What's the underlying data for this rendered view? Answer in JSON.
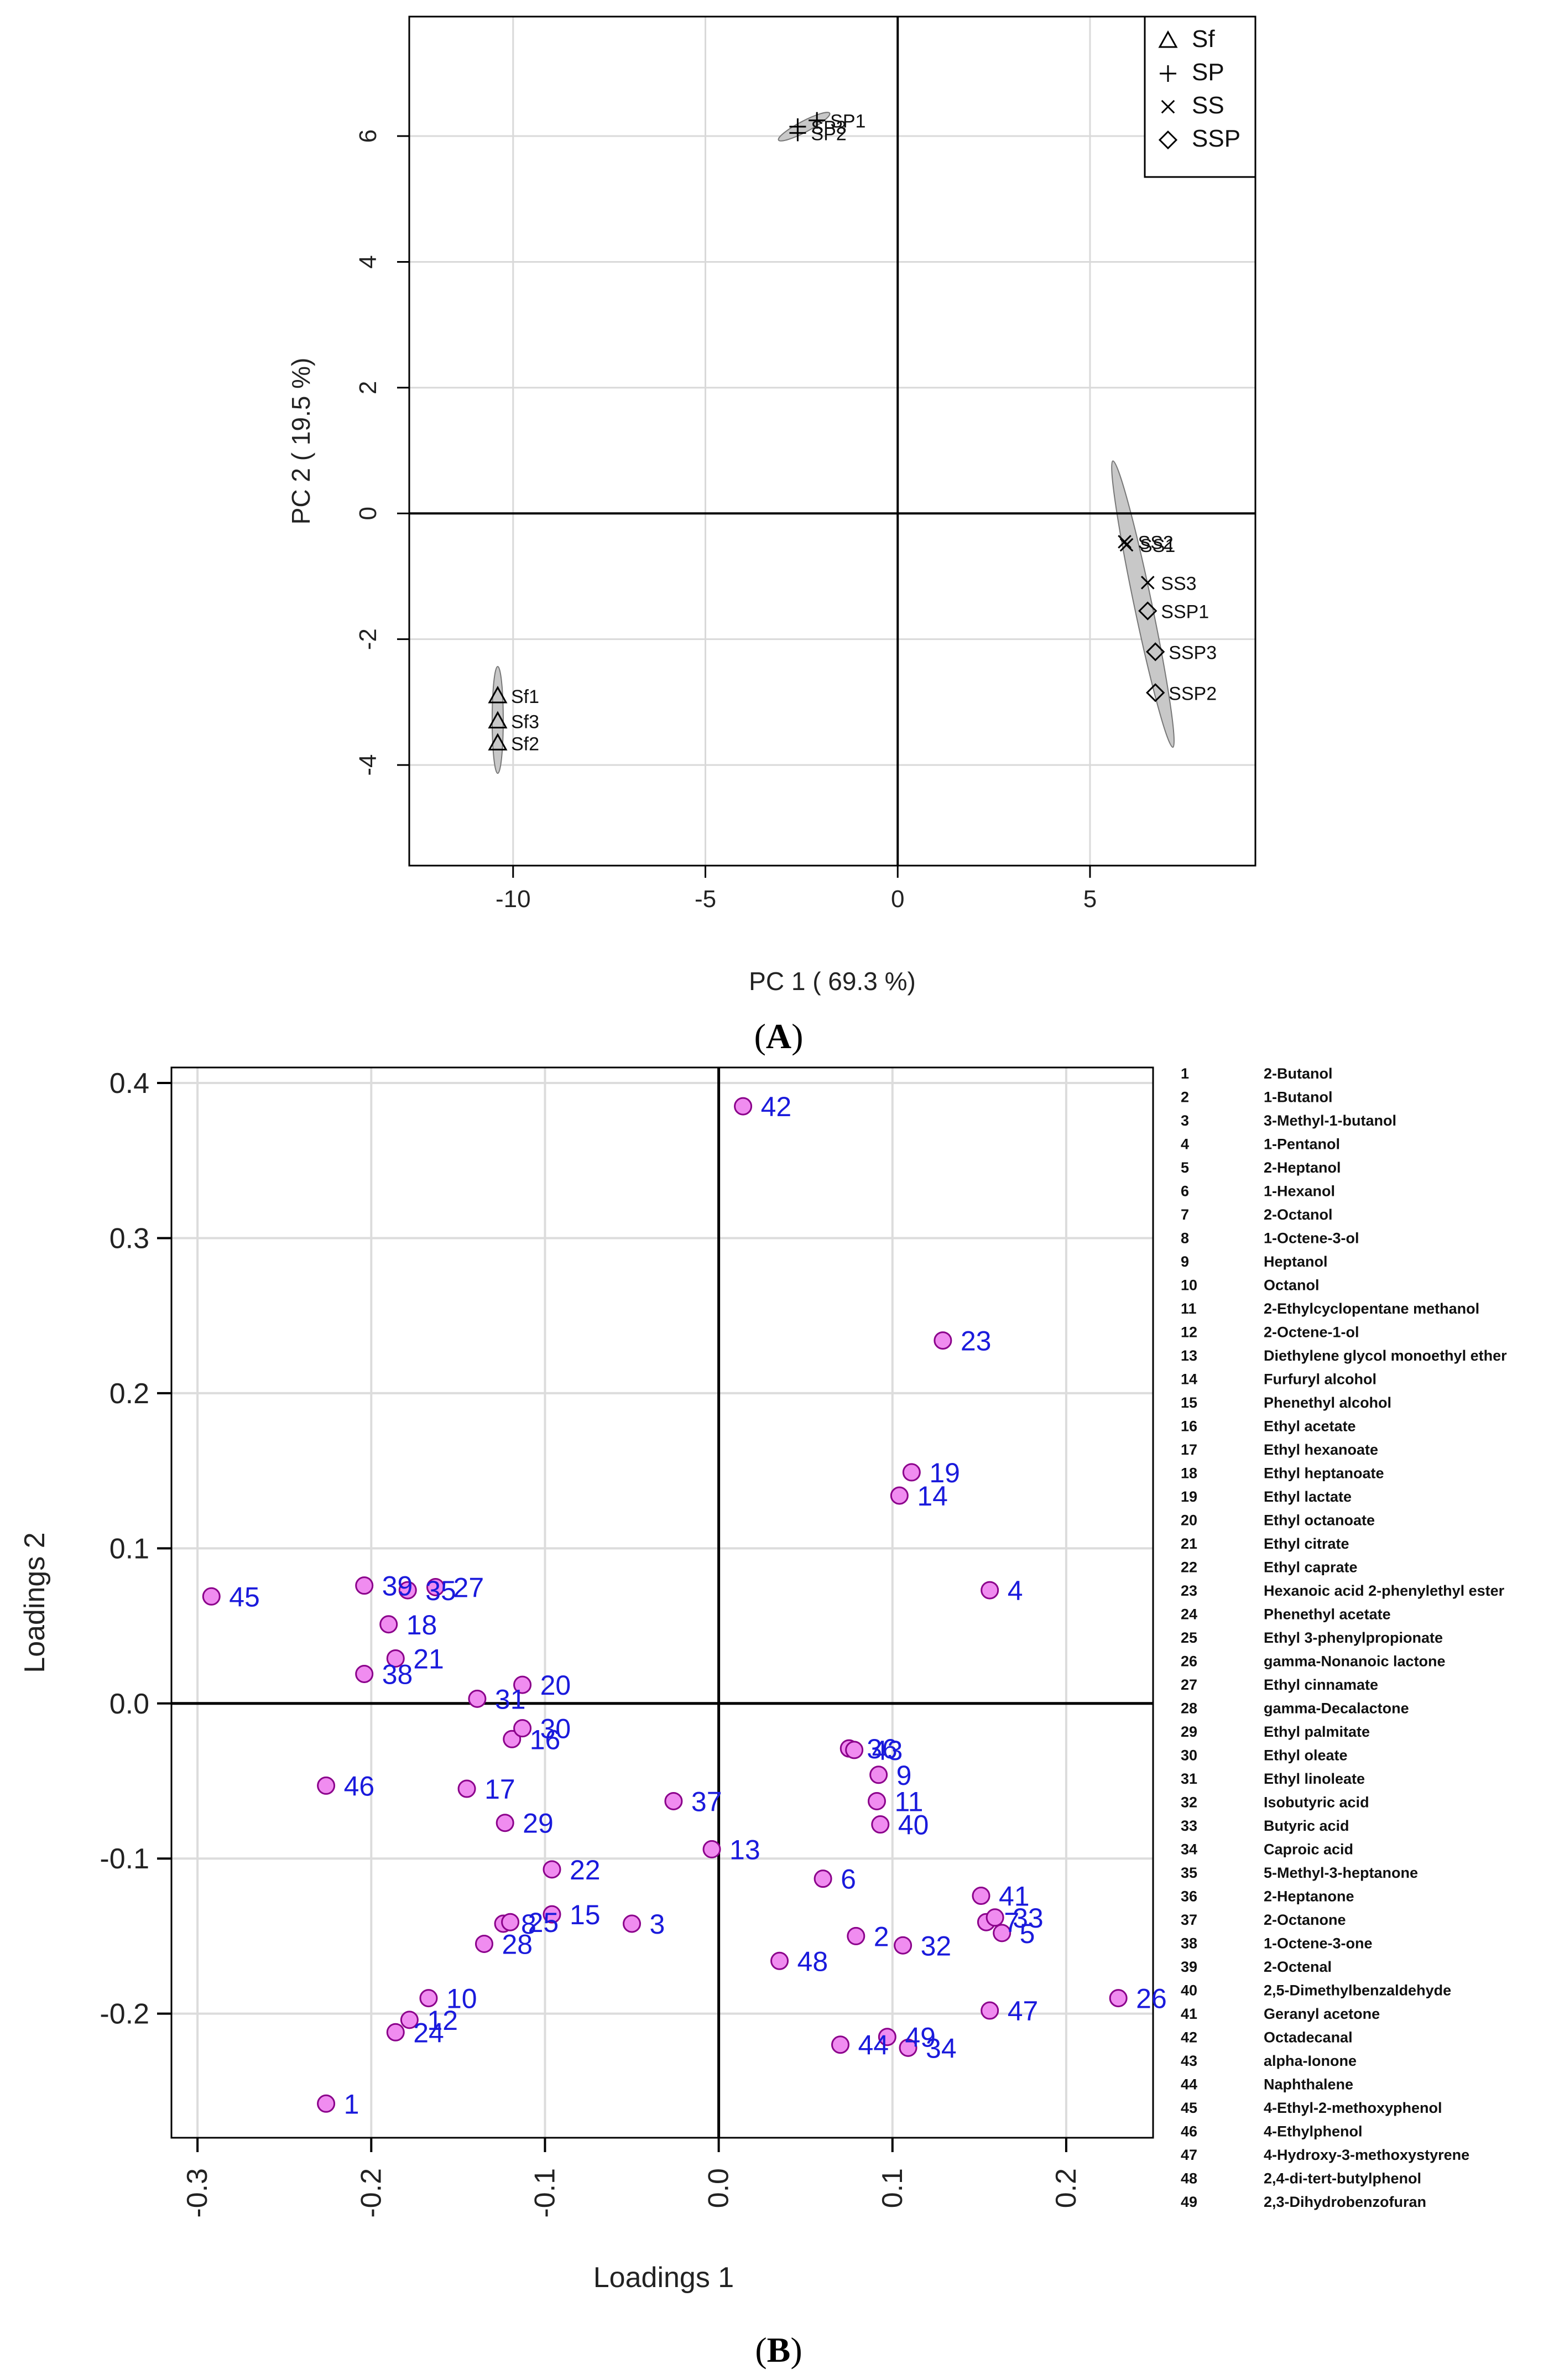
{
  "chart_data": [
    {
      "type": "scatter",
      "panel": "(A)",
      "panel_letter": "A",
      "title": "",
      "xlabel": "PC 1 ( 69.3 %)",
      "ylabel": "PC 2 ( 19.5 %)",
      "xlim": [
        -12.7,
        9.3
      ],
      "ylim": [
        -5.6,
        7.9
      ],
      "xticks": [
        -10,
        -5,
        0,
        5
      ],
      "yticks": [
        -4,
        -2,
        0,
        2,
        4,
        6
      ],
      "legend": {
        "placement": "top-right",
        "entries": [
          {
            "symbol": "△",
            "label": "Sf"
          },
          {
            "symbol": "+",
            "label": "SP"
          },
          {
            "symbol": "×",
            "label": "SS"
          },
          {
            "symbol": "◇",
            "label": "SSP"
          }
        ]
      },
      "series": [
        {
          "name": "Sf",
          "marker": "triangle",
          "points": [
            {
              "label": "Sf1",
              "x": -10.4,
              "y": -2.9
            },
            {
              "label": "Sf3",
              "x": -10.4,
              "y": -3.3
            },
            {
              "label": "Sf2",
              "x": -10.4,
              "y": -3.65
            }
          ]
        },
        {
          "name": "SP",
          "marker": "plus",
          "points": [
            {
              "label": "SP1",
              "x": -2.1,
              "y": 6.25
            },
            {
              "label": "SP3",
              "x": -2.6,
              "y": 6.15
            },
            {
              "label": "SP2",
              "x": -2.6,
              "y": 6.05
            }
          ]
        },
        {
          "name": "SS",
          "marker": "cross",
          "points": [
            {
              "label": "SS2",
              "x": 5.9,
              "y": -0.45
            },
            {
              "label": "SS1",
              "x": 5.95,
              "y": -0.5
            },
            {
              "label": "SS3",
              "x": 6.5,
              "y": -1.1
            }
          ]
        },
        {
          "name": "SSP",
          "marker": "diamond",
          "points": [
            {
              "label": "SSP1",
              "x": 6.5,
              "y": -1.55
            },
            {
              "label": "SSP3",
              "x": 6.7,
              "y": -2.2
            },
            {
              "label": "SSP2",
              "x": 6.7,
              "y": -2.85
            }
          ]
        }
      ]
    },
    {
      "type": "scatter",
      "panel": "(B)",
      "panel_letter": "B",
      "title": "",
      "xlabel": "Loadings 1",
      "ylabel": "Loadings 2",
      "xlim": [
        -0.315,
        0.25
      ],
      "ylim": [
        -0.28,
        0.41
      ],
      "xticks": [
        "-0.3",
        "-0.2",
        "-0.1",
        "0.0",
        "0.1",
        "0.2"
      ],
      "yticks": [
        "-0.2",
        "-0.1",
        "0.0",
        "0.1",
        "0.2",
        "0.3",
        "0.4"
      ],
      "point_color": "#f08cf0",
      "point_stroke": "#8b008b",
      "label_color": "#1a1adc",
      "points": [
        {
          "id": "1",
          "x": -0.226,
          "y": -0.258
        },
        {
          "id": "2",
          "x": 0.079,
          "y": -0.15
        },
        {
          "id": "3",
          "x": -0.05,
          "y": -0.142
        },
        {
          "id": "4",
          "x": 0.156,
          "y": 0.073
        },
        {
          "id": "5",
          "x": 0.163,
          "y": -0.148
        },
        {
          "id": "6",
          "x": 0.06,
          "y": -0.113
        },
        {
          "id": "7",
          "x": 0.154,
          "y": -0.141
        },
        {
          "id": "8",
          "x": -0.124,
          "y": -0.142
        },
        {
          "id": "9",
          "x": 0.092,
          "y": -0.046
        },
        {
          "id": "10",
          "x": -0.167,
          "y": -0.19
        },
        {
          "id": "11",
          "x": 0.091,
          "y": -0.063
        },
        {
          "id": "12",
          "x": -0.178,
          "y": -0.204
        },
        {
          "id": "13",
          "x": -0.004,
          "y": -0.094
        },
        {
          "id": "14",
          "x": 0.104,
          "y": 0.134
        },
        {
          "id": "15",
          "x": -0.096,
          "y": -0.136
        },
        {
          "id": "16",
          "x": -0.119,
          "y": -0.023
        },
        {
          "id": "17",
          "x": -0.145,
          "y": -0.055
        },
        {
          "id": "18",
          "x": -0.19,
          "y": 0.051
        },
        {
          "id": "19",
          "x": 0.111,
          "y": 0.149
        },
        {
          "id": "20",
          "x": -0.113,
          "y": 0.012
        },
        {
          "id": "21",
          "x": -0.186,
          "y": 0.029
        },
        {
          "id": "22",
          "x": -0.096,
          "y": -0.107
        },
        {
          "id": "23",
          "x": 0.129,
          "y": 0.234
        },
        {
          "id": "24",
          "x": -0.186,
          "y": -0.212
        },
        {
          "id": "25",
          "x": -0.12,
          "y": -0.141
        },
        {
          "id": "26",
          "x": 0.23,
          "y": -0.19
        },
        {
          "id": "27",
          "x": -0.163,
          "y": 0.075
        },
        {
          "id": "28",
          "x": -0.135,
          "y": -0.155
        },
        {
          "id": "29",
          "x": -0.123,
          "y": -0.077
        },
        {
          "id": "30",
          "x": -0.113,
          "y": -0.016
        },
        {
          "id": "31",
          "x": -0.139,
          "y": 0.003
        },
        {
          "id": "32",
          "x": 0.106,
          "y": -0.156
        },
        {
          "id": "33",
          "x": 0.159,
          "y": -0.138
        },
        {
          "id": "34",
          "x": 0.109,
          "y": -0.222
        },
        {
          "id": "35",
          "x": -0.179,
          "y": 0.073
        },
        {
          "id": "36",
          "x": 0.075,
          "y": -0.029
        },
        {
          "id": "37",
          "x": -0.026,
          "y": -0.063
        },
        {
          "id": "38",
          "x": -0.204,
          "y": 0.019
        },
        {
          "id": "39",
          "x": -0.204,
          "y": 0.076
        },
        {
          "id": "40",
          "x": 0.093,
          "y": -0.078
        },
        {
          "id": "41",
          "x": 0.151,
          "y": -0.124
        },
        {
          "id": "42",
          "x": 0.014,
          "y": 0.385
        },
        {
          "id": "43",
          "x": 0.078,
          "y": -0.03
        },
        {
          "id": "44",
          "x": 0.07,
          "y": -0.22
        },
        {
          "id": "45",
          "x": -0.292,
          "y": 0.069
        },
        {
          "id": "46",
          "x": -0.226,
          "y": -0.053
        },
        {
          "id": "47",
          "x": 0.156,
          "y": -0.198
        },
        {
          "id": "48",
          "x": 0.035,
          "y": -0.166
        },
        {
          "id": "49",
          "x": 0.097,
          "y": -0.215
        }
      ]
    }
  ],
  "compound_legend": [
    {
      "num": "1",
      "name": "2-Butanol"
    },
    {
      "num": "2",
      "name": "1-Butanol"
    },
    {
      "num": "3",
      "name": "3-Methyl-1-butanol"
    },
    {
      "num": "4",
      "name": "1-Pentanol"
    },
    {
      "num": "5",
      "name": "2-Heptanol"
    },
    {
      "num": "6",
      "name": "1-Hexanol"
    },
    {
      "num": "7",
      "name": "2-Octanol"
    },
    {
      "num": "8",
      "name": "1-Octene-3-ol"
    },
    {
      "num": "9",
      "name": "Heptanol"
    },
    {
      "num": "10",
      "name": "Octanol"
    },
    {
      "num": "11",
      "name": "2-Ethylcyclopentane methanol"
    },
    {
      "num": "12",
      "name": "2-Octene-1-ol"
    },
    {
      "num": "13",
      "name": "Diethylene glycol monoethyl ether"
    },
    {
      "num": "14",
      "name": "Furfuryl alcohol"
    },
    {
      "num": "15",
      "name": "Phenethyl alcohol"
    },
    {
      "num": "16",
      "name": "Ethyl acetate"
    },
    {
      "num": "17",
      "name": "Ethyl hexanoate"
    },
    {
      "num": "18",
      "name": "Ethyl heptanoate"
    },
    {
      "num": "19",
      "name": "Ethyl lactate"
    },
    {
      "num": "20",
      "name": "Ethyl octanoate"
    },
    {
      "num": "21",
      "name": "Ethyl citrate"
    },
    {
      "num": "22",
      "name": "Ethyl caprate"
    },
    {
      "num": "23",
      "name": "Hexanoic acid 2-phenylethyl ester"
    },
    {
      "num": "24",
      "name": "Phenethyl acetate"
    },
    {
      "num": "25",
      "name": "Ethyl 3-phenylpropionate"
    },
    {
      "num": "26",
      "name": "gamma-Nonanoic lactone"
    },
    {
      "num": "27",
      "name": "Ethyl cinnamate"
    },
    {
      "num": "28",
      "name": "gamma-Decalactone"
    },
    {
      "num": "29",
      "name": "Ethyl palmitate"
    },
    {
      "num": "30",
      "name": "Ethyl oleate"
    },
    {
      "num": "31",
      "name": "Ethyl linoleate"
    },
    {
      "num": "32",
      "name": "Isobutyric acid"
    },
    {
      "num": "33",
      "name": "Butyric acid"
    },
    {
      "num": "34",
      "name": "Caproic acid"
    },
    {
      "num": "35",
      "name": "5-Methyl-3-heptanone"
    },
    {
      "num": "36",
      "name": "2-Heptanone"
    },
    {
      "num": "37",
      "name": "2-Octanone"
    },
    {
      "num": "38",
      "name": "1-Octene-3-one"
    },
    {
      "num": "39",
      "name": "2-Octenal"
    },
    {
      "num": "40",
      "name": "2,5-Dimethylbenzaldehyde"
    },
    {
      "num": "41",
      "name": "Geranyl acetone"
    },
    {
      "num": "42",
      "name": "Octadecanal"
    },
    {
      "num": "43",
      "name": "alpha-Ionone"
    },
    {
      "num": "44",
      "name": "Naphthalene"
    },
    {
      "num": "45",
      "name": "4-Ethyl-2-methoxyphenol"
    },
    {
      "num": "46",
      "name": "4-Ethylphenol"
    },
    {
      "num": "47",
      "name": "4-Hydroxy-3-methoxystyrene"
    },
    {
      "num": "48",
      "name": "2,4-di-tert-butylphenol"
    },
    {
      "num": "49",
      "name": "2,3-Dihydrobenzofuran"
    }
  ]
}
